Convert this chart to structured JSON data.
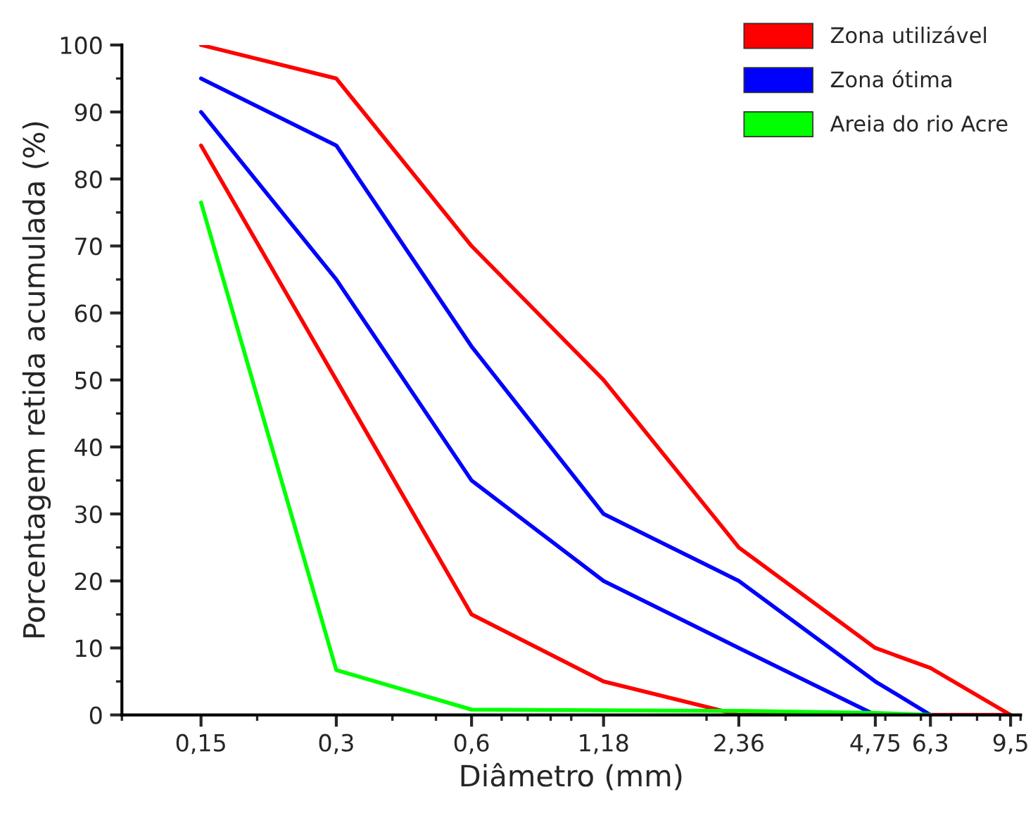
{
  "chart_data": {
    "type": "line",
    "xlabel": "Diâmetro (mm)",
    "ylabel": "Porcentagem retida acumulada (%)",
    "log": "x",
    "xlim": [
      0.1,
      10
    ],
    "ylim": [
      0,
      100
    ],
    "xticks": [
      {
        "value": 0.15,
        "label": "0,15"
      },
      {
        "value": 0.3,
        "label": "0,3"
      },
      {
        "value": 0.6,
        "label": "0,6"
      },
      {
        "value": 1.18,
        "label": "1,18"
      },
      {
        "value": 2.36,
        "label": "2,36"
      },
      {
        "value": 4.75,
        "label": "4,75"
      },
      {
        "value": 6.3,
        "label": "6,3"
      },
      {
        "value": 9.5,
        "label": "9,5"
      }
    ],
    "yticks": [
      0,
      10,
      20,
      30,
      40,
      50,
      60,
      70,
      80,
      90,
      100
    ],
    "grid": false,
    "legend": "top right",
    "marker": "none",
    "line_style": "solid",
    "series": [
      {
        "name": "Zona utilizável",
        "color": "#ff0000",
        "x": [
          0.15,
          0.3,
          0.6,
          1.18,
          2.36,
          4.75,
          6.3,
          9.5
        ],
        "values": [
          100,
          95,
          70,
          50,
          25,
          10,
          7,
          0
        ]
      },
      {
        "color": "#ff0000",
        "x": [
          0.15,
          0.3,
          0.6,
          1.18,
          2.36,
          4.75,
          6.3,
          9.5
        ],
        "values": [
          85,
          50,
          15,
          5,
          0,
          0,
          0,
          0
        ]
      },
      {
        "name": "Zona ótima",
        "color": "#0000ff",
        "x": [
          0.15,
          0.3,
          0.6,
          1.18,
          2.36,
          4.75,
          6.3
        ],
        "values": [
          95,
          85,
          55,
          30,
          20,
          5,
          0
        ]
      },
      {
        "color": "#0000ff",
        "x": [
          0.15,
          0.3,
          0.6,
          1.18,
          2.36,
          4.75
        ],
        "values": [
          90,
          65,
          35,
          20,
          10,
          0
        ]
      },
      {
        "name": "Areia do rio Acre",
        "color": "#00ff00",
        "x": [
          0.15,
          0.3,
          0.6,
          1.18,
          2.36,
          4.75,
          6.3
        ],
        "values": [
          76.5,
          6.7,
          0.8,
          0.7,
          0.6,
          0.3,
          0
        ]
      }
    ]
  }
}
